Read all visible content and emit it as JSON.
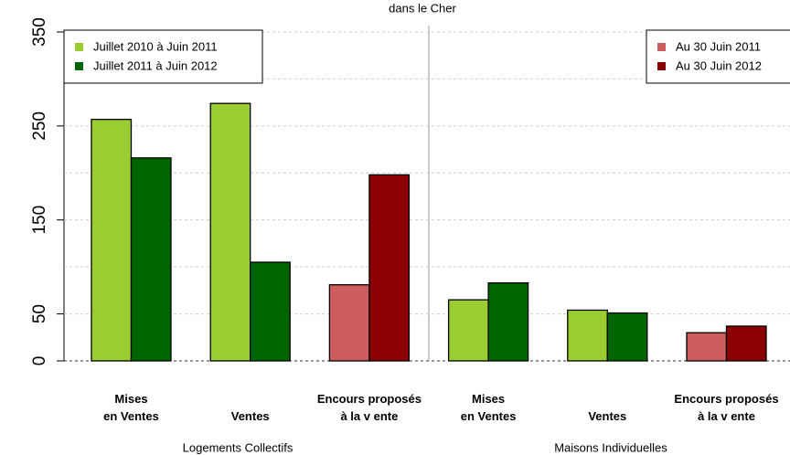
{
  "chart_data": {
    "type": "bar",
    "title": "dans le Cher",
    "groups": [
      "Logements Collectifs",
      "Maisons Individuelles"
    ],
    "categories": [
      [
        "Mises",
        "en Ventes"
      ],
      [
        "Ventes"
      ],
      [
        "Encours proposés",
        "à la v ente"
      ],
      [
        "Mises",
        "en Ventes"
      ],
      [
        "Ventes"
      ],
      [
        "Encours proposés",
        "à la v ente"
      ]
    ],
    "series": [
      {
        "name": "Juillet 2010 à Juin 2011",
        "color": "#9acd32",
        "values": [
          257,
          274,
          null,
          65,
          54,
          null
        ]
      },
      {
        "name": "Juillet 2011 à Juin 2012",
        "color": "#006400",
        "values": [
          216,
          105,
          null,
          83,
          51,
          null
        ]
      },
      {
        "name": "Au 30 Juin 2011",
        "color": "#cd5c5c",
        "values": [
          null,
          null,
          81,
          null,
          null,
          30
        ]
      },
      {
        "name": "Au 30 Juin 2012",
        "color": "#8b0000",
        "values": [
          null,
          null,
          198,
          null,
          null,
          37
        ]
      }
    ],
    "ylim": [
      0,
      350
    ],
    "yticks": [
      0,
      50,
      150,
      250,
      350
    ],
    "ygrid": [
      0,
      50,
      100,
      150,
      200,
      250,
      300,
      350
    ],
    "grid": true
  }
}
